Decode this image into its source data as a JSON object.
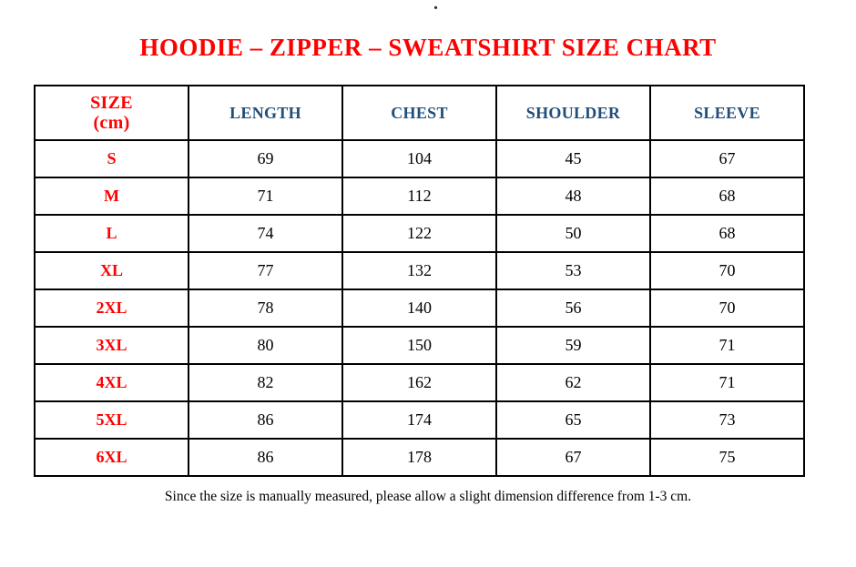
{
  "page": {
    "stray_mark": "."
  },
  "colors": {
    "title_red": "#ff0000",
    "header_navy": "#1f4e79",
    "size_red": "#ff0000",
    "value_black": "#000000",
    "border_black": "#000000",
    "page_bg": "#ffffff"
  },
  "chart_data": {
    "type": "table",
    "title": "HOODIE – ZIPPER – SWEATSHIRT SIZE CHART",
    "columns": [
      "SIZE (cm)",
      "LENGTH",
      "CHEST",
      "SHOULDER",
      "SLEEVE"
    ],
    "header": {
      "size_line1": "SIZE",
      "size_line2": "(cm)",
      "length": "LENGTH",
      "chest": "CHEST",
      "shoulder": "SHOULDER",
      "sleeve": "SLEEVE"
    },
    "rows": [
      {
        "size": "S",
        "length": 69,
        "chest": 104,
        "shoulder": 45,
        "sleeve": 67
      },
      {
        "size": "M",
        "length": 71,
        "chest": 112,
        "shoulder": 48,
        "sleeve": 68
      },
      {
        "size": "L",
        "length": 74,
        "chest": 122,
        "shoulder": 50,
        "sleeve": 68
      },
      {
        "size": "XL",
        "length": 77,
        "chest": 132,
        "shoulder": 53,
        "sleeve": 70
      },
      {
        "size": "2XL",
        "length": 78,
        "chest": 140,
        "shoulder": 56,
        "sleeve": 70
      },
      {
        "size": "3XL",
        "length": 80,
        "chest": 150,
        "shoulder": 59,
        "sleeve": 71
      },
      {
        "size": "4XL",
        "length": 82,
        "chest": 162,
        "shoulder": 62,
        "sleeve": 71
      },
      {
        "size": "5XL",
        "length": 86,
        "chest": 174,
        "shoulder": 65,
        "sleeve": 73
      },
      {
        "size": "6XL",
        "length": 86,
        "chest": 178,
        "shoulder": 67,
        "sleeve": 75
      }
    ],
    "footnote": "Since the size is manually measured, please allow a slight dimension difference from 1-3 cm."
  }
}
